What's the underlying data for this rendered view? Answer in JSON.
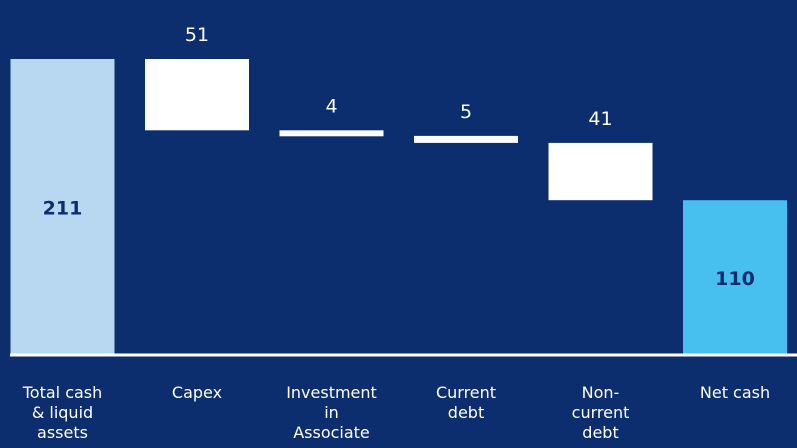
{
  "colors": {
    "background": "#0c2e6e",
    "total": "#b8d8f1",
    "decrease": "#ffffff",
    "net": "#47c0ef",
    "value_text_dark": "#0c2e6e",
    "label_text": "#ffffff",
    "axis": "#ffffff"
  },
  "chart_data": {
    "type": "bar",
    "subtype": "waterfall",
    "title": "",
    "xlabel": "",
    "ylabel": "",
    "ylim": [
      0,
      211
    ],
    "grid": false,
    "categories": [
      "Total cash & liquid assets",
      "Capex",
      "Investment in Associate",
      "Current debt",
      "Non-current debt",
      "Net cash"
    ],
    "category_lines": [
      [
        "Total cash",
        "& liquid",
        "assets"
      ],
      [
        "Capex"
      ],
      [
        "Investment",
        "in",
        "Associate"
      ],
      [
        "Current",
        "debt"
      ],
      [
        "Non-",
        "current",
        "debt"
      ],
      [
        "Net cash"
      ]
    ],
    "values": [
      211,
      -51,
      -4,
      -5,
      -41,
      110
    ],
    "value_labels": [
      "211",
      "51",
      "4",
      "5",
      "41",
      "110"
    ],
    "bar_kinds": [
      "total",
      "decrease",
      "decrease",
      "decrease",
      "decrease",
      "total"
    ]
  }
}
